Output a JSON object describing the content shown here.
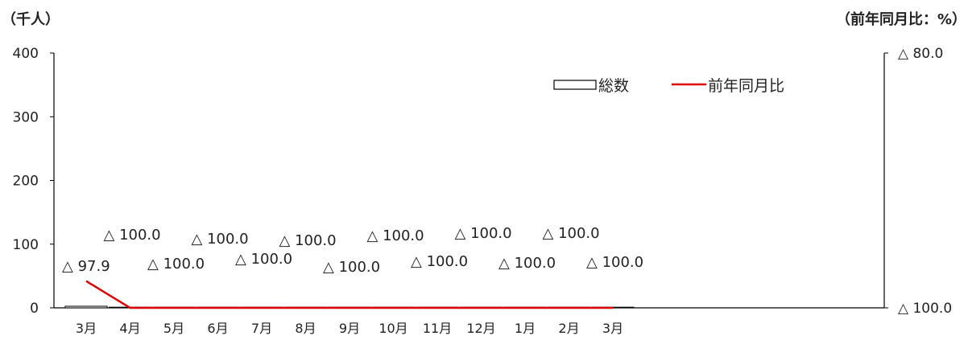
{
  "chart_data": {
    "type": "bar",
    "title": "",
    "left_axis_unit": "（千人）",
    "right_axis_unit": "（前年同月比：%）",
    "categories": [
      "3月",
      "4月",
      "5月",
      "6月",
      "7月",
      "8月",
      "9月",
      "10月",
      "11月",
      "12月",
      "1月",
      "2月",
      "3月"
    ],
    "left_axis": {
      "ylim": [
        0,
        400
      ],
      "ticks": [
        "0",
        "100",
        "200",
        "300",
        "400"
      ]
    },
    "right_axis": {
      "ylim": [
        -100,
        -80
      ],
      "ticks": [
        "△ 100.0",
        "△ 80.0"
      ]
    },
    "series": [
      {
        "name": "総数",
        "type": "bar",
        "axis": "left",
        "values": [
          2.5,
          0.5,
          0,
          0,
          0,
          0,
          0,
          0,
          0,
          0,
          0,
          0,
          0
        ]
      },
      {
        "name": "前年同月比",
        "type": "line",
        "axis": "right",
        "color": "#e00000",
        "values": [
          -97.9,
          -100.0,
          -100.0,
          -100.0,
          -100.0,
          -100.0,
          -100.0,
          -100.0,
          -100.0,
          -100.0,
          -100.0,
          -100.0,
          -100.0
        ],
        "labels": [
          "△ 97.9",
          "△ 100.0",
          "△ 100.0",
          "△ 100.0",
          "△ 100.0",
          "△ 100.0",
          "△ 100.0",
          "△ 100.0",
          "△ 100.0",
          "△ 100.0",
          "△ 100.0",
          "△ 100.0",
          "△ 100.0"
        ]
      }
    ],
    "legend_position": "top-right",
    "grid": false
  }
}
